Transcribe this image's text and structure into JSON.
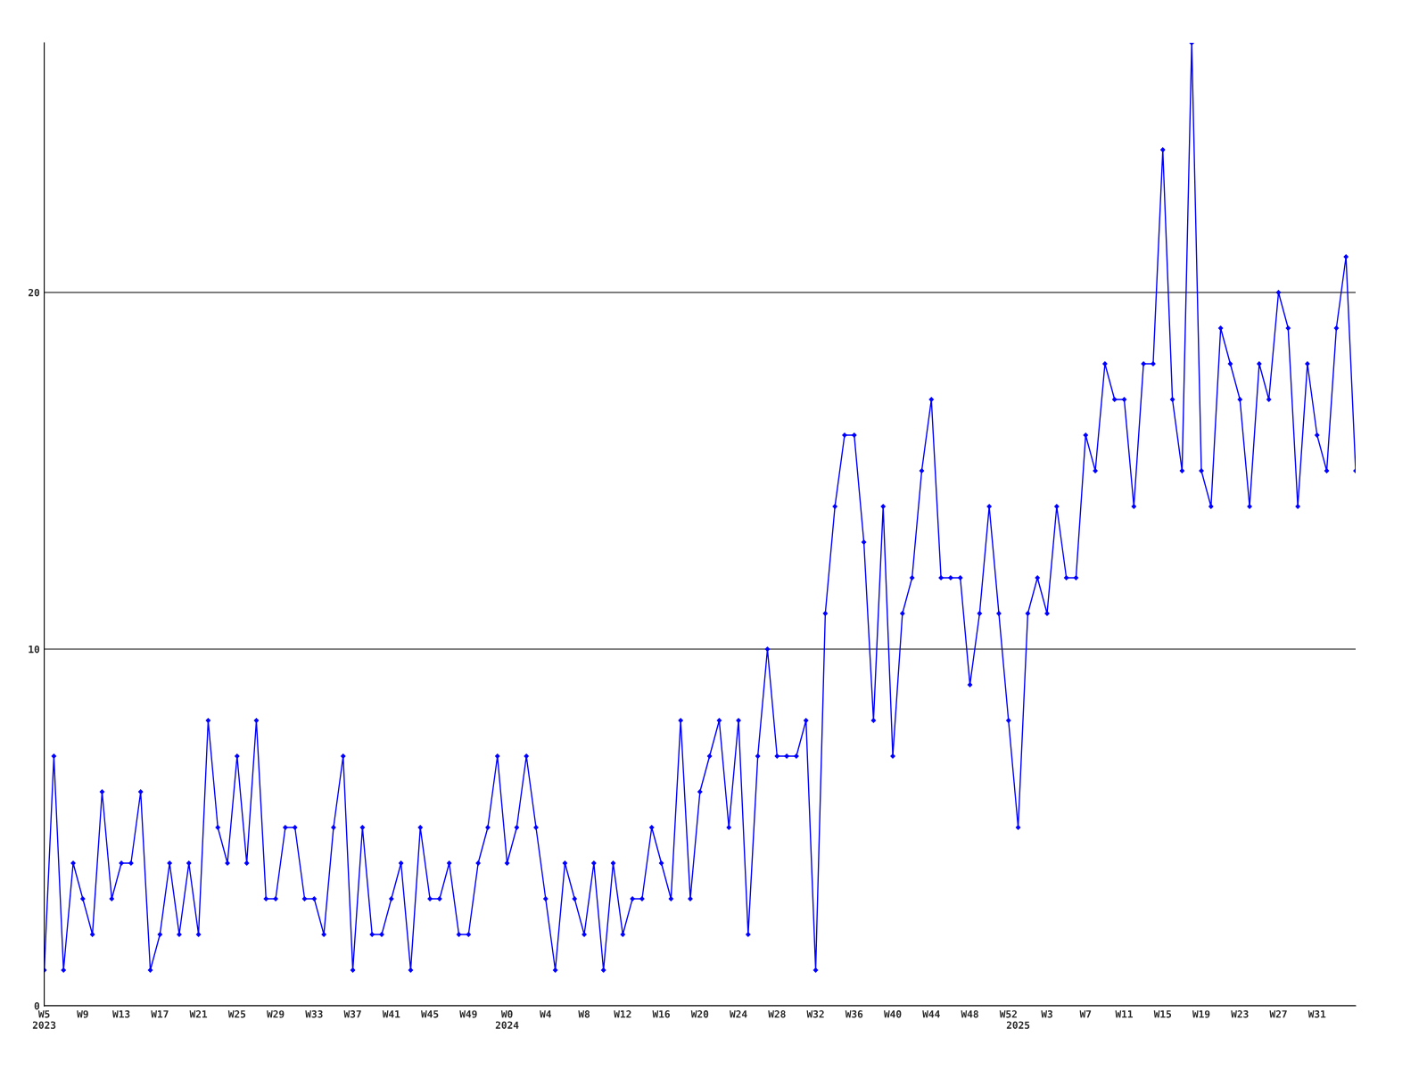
{
  "chart_data": {
    "type": "line",
    "categories": [
      "W5\n2023",
      null,
      null,
      null,
      "W9",
      null,
      null,
      null,
      "W13",
      null,
      null,
      null,
      "W17",
      null,
      null,
      null,
      "W21",
      null,
      null,
      null,
      "W25",
      null,
      null,
      null,
      "W29",
      null,
      null,
      null,
      "W33",
      null,
      null,
      null,
      "W37",
      null,
      null,
      null,
      "W41",
      null,
      null,
      null,
      "W45",
      null,
      null,
      null,
      "W49",
      null,
      null,
      null,
      "W0\n2024",
      null,
      null,
      null,
      "W4",
      null,
      null,
      null,
      "W8",
      null,
      null,
      null,
      "W12",
      null,
      null,
      null,
      "W16",
      null,
      null,
      null,
      "W20",
      null,
      null,
      null,
      "W24",
      null,
      null,
      null,
      "W28",
      null,
      null,
      null,
      "W32",
      null,
      null,
      null,
      "W36",
      null,
      null,
      null,
      "W40",
      null,
      null,
      null,
      "W44",
      null,
      null,
      null,
      "W48",
      null,
      null,
      null,
      "W52",
      "\n2025",
      null,
      null,
      "W3",
      null,
      null,
      null,
      "W7",
      null,
      null,
      null,
      "W11",
      null,
      null,
      null,
      "W15",
      null,
      null,
      null,
      "W19",
      null,
      null,
      null,
      "W23",
      null,
      null,
      null,
      "W27",
      null,
      null,
      null,
      "W31",
      null,
      null,
      null,
      null
    ],
    "series": [
      {
        "color": "#0000ff",
        "values": [
          1,
          7,
          1,
          4,
          3,
          2,
          6,
          3,
          4,
          4,
          6,
          1,
          2,
          4,
          2,
          4,
          2,
          8,
          5,
          4,
          7,
          4,
          8,
          3,
          3,
          5,
          5,
          3,
          3,
          2,
          5,
          7,
          1,
          5,
          2,
          2,
          3,
          4,
          1,
          5,
          3,
          3,
          4,
          2,
          2,
          4,
          5,
          7,
          4,
          5,
          7,
          5,
          3,
          1,
          4,
          3,
          2,
          4,
          1,
          4,
          2,
          3,
          3,
          5,
          4,
          3,
          8,
          3,
          6,
          7,
          8,
          5,
          8,
          2,
          7,
          10,
          7,
          7,
          7,
          8,
          1,
          11,
          14,
          16,
          16,
          13,
          8,
          14,
          7,
          11,
          12,
          15,
          17,
          12,
          12,
          12,
          9,
          11,
          14,
          11,
          8,
          5,
          11,
          12,
          11,
          14,
          12,
          12,
          16,
          15,
          18,
          17,
          17,
          14,
          18,
          18,
          24,
          17,
          15,
          27,
          15,
          14,
          19,
          18,
          17,
          14,
          18,
          17,
          20,
          19,
          14,
          18,
          16,
          15,
          19,
          21,
          15
        ]
      }
    ],
    "ylim": [
      0,
      27
    ],
    "yticks": [
      0,
      10,
      20
    ],
    "grid": "y",
    "marker": "diamond",
    "line_style": "solid"
  }
}
